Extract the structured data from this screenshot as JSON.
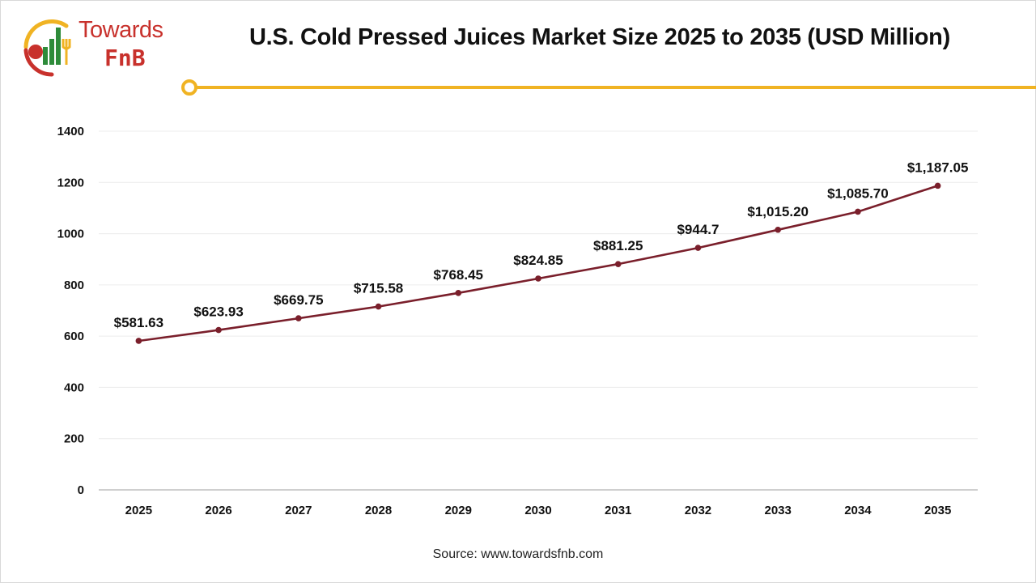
{
  "header": {
    "title": "U.S. Cold Pressed Juices Market Size 2025 to 2035 (USD Million)"
  },
  "logo": {
    "word1": "Towards",
    "word2": "FnB",
    "colors": {
      "red": "#c8312c",
      "green": "#2e8b3a",
      "yellow": "#f0b323"
    }
  },
  "accent_color": "#f0b323",
  "line_color": "#7a1f2b",
  "source": "Source: www.towardsfnb.com",
  "chart_data": {
    "type": "line",
    "title": "U.S. Cold Pressed Juices Market Size 2025 to 2035 (USD Million)",
    "xlabel": "",
    "ylabel": "",
    "ylim": [
      0,
      1400
    ],
    "yticks": [
      0,
      200,
      400,
      600,
      800,
      1000,
      1200,
      1400
    ],
    "grid": true,
    "legend": "none",
    "categories": [
      "2025",
      "2026",
      "2027",
      "2028",
      "2029",
      "2030",
      "2031",
      "2032",
      "2033",
      "2034",
      "2035"
    ],
    "series": [
      {
        "values": [
          581.63,
          623.93,
          669.75,
          715.58,
          768.45,
          824.85,
          881.25,
          944.7,
          1015.2,
          1085.7,
          1187.05
        ],
        "labels": [
          "$581.63",
          "$623.93",
          "$669.75",
          "$715.58",
          "$768.45",
          "$824.85",
          "$881.25",
          "$944.7",
          "$1,015.20",
          "$1,085.70",
          "$1,187.05"
        ]
      }
    ]
  }
}
